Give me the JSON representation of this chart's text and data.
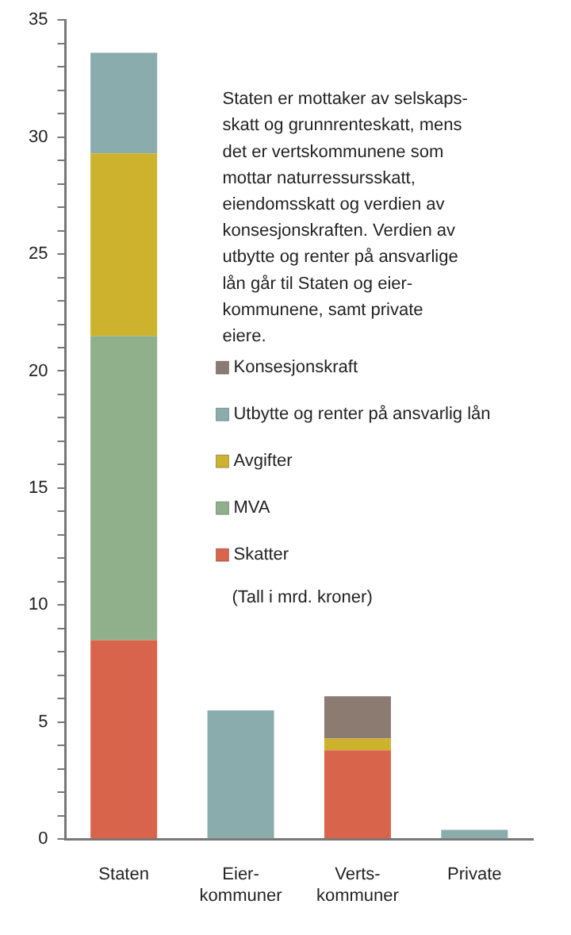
{
  "chart_data": {
    "type": "bar",
    "stacked": true,
    "categories": [
      "Staten",
      "Eier-\nkommuner",
      "Verts-\nkommuner",
      "Private"
    ],
    "series": [
      {
        "name": "Skatter",
        "color": "#d9644c",
        "values": [
          8.5,
          null,
          3.8,
          null
        ]
      },
      {
        "name": "MVA",
        "color": "#8fb08a",
        "values": [
          13,
          null,
          null,
          null
        ]
      },
      {
        "name": "Avgifter",
        "color": "#cdb22e",
        "values": [
          7.8,
          null,
          0.5,
          null
        ]
      },
      {
        "name": "Utbytte og renter på ansvarlig lån",
        "color": "#8aacad",
        "values": [
          4.3,
          5.5,
          null,
          0.4
        ]
      },
      {
        "name": "Konsesjonskraft",
        "color": "#8b7b70",
        "values": [
          null,
          null,
          1.8,
          null
        ]
      }
    ],
    "ylim": [
      0,
      35
    ],
    "yticks": [
      0,
      {
        "value": 1,
        "label": null
      },
      {
        "value": 2,
        "label": null
      },
      {
        "value": 3,
        "label": null
      },
      {
        "value": 4,
        "label": null
      },
      5,
      {
        "value": 6,
        "label": null
      },
      {
        "value": 7,
        "label": null
      },
      {
        "value": 8,
        "label": null
      },
      {
        "value": 9,
        "label": null
      },
      10,
      {
        "value": 11,
        "label": null
      },
      {
        "value": 12,
        "label": null
      },
      {
        "value": 13,
        "label": null
      },
      {
        "value": 14,
        "label": null
      },
      15,
      {
        "value": 16,
        "label": null
      },
      {
        "value": 17,
        "label": null
      },
      {
        "value": 18,
        "label": null
      },
      {
        "value": 19,
        "label": null
      },
      20,
      {
        "value": 21,
        "label": null
      },
      {
        "value": 22,
        "label": null
      },
      {
        "value": 23,
        "label": null
      },
      {
        "value": 24,
        "label": null
      },
      25,
      {
        "value": 26,
        "label": null
      },
      {
        "value": 27,
        "label": null
      },
      {
        "value": 28,
        "label": null
      },
      {
        "value": 29,
        "label": null
      },
      30,
      {
        "value": 31,
        "label": null
      },
      {
        "value": 32,
        "label": null
      },
      {
        "value": 33,
        "label": null
      },
      {
        "value": 34,
        "label": null
      },
      35
    ],
    "legend": "right",
    "annotations": [
      "Staten er mottaker av selskaps-\nskatt og grunnrenteskatt, mens\ndet er vertskommunene som\nmottar naturressursskatt,\neiendomsskatt og verdien av\nkonsesjonskraften. Verdien av\nutbytte og renter på ansvarlige\nlån går til Staten og eier-\nkommunene, samt private\neiere.",
      "(Tall i mrd. kroner)"
    ]
  }
}
